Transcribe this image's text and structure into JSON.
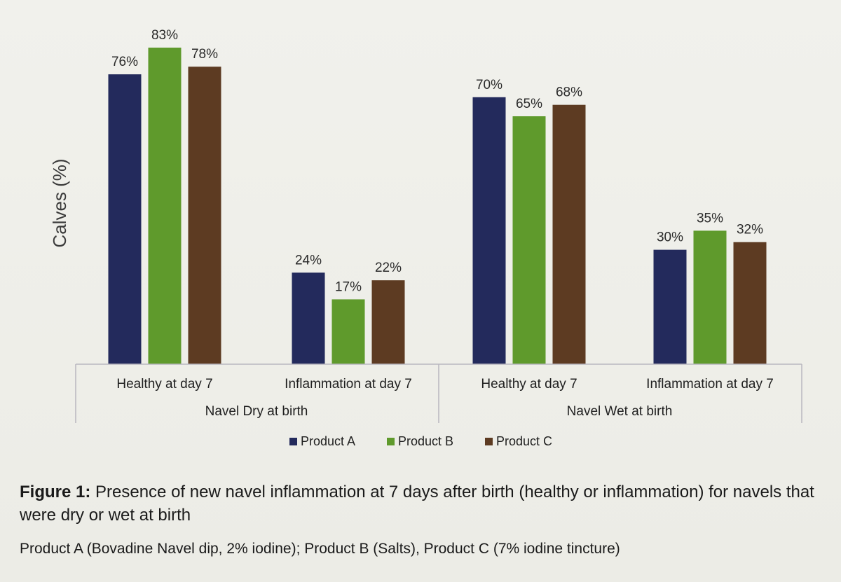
{
  "chart_data": {
    "type": "bar",
    "ylabel": "Calves (%)",
    "groups": [
      {
        "label": "Navel Dry at birth",
        "categories": [
          {
            "label": "Healthy at day 7",
            "values": [
              76,
              83,
              78
            ]
          },
          {
            "label": "Inflammation at day 7",
            "values": [
              24,
              17,
              22
            ]
          }
        ]
      },
      {
        "label": "Navel Wet at birth",
        "categories": [
          {
            "label": "Healthy at day 7",
            "values": [
              70,
              65,
              68
            ]
          },
          {
            "label": "Inflammation at day 7",
            "values": [
              30,
              35,
              32
            ]
          }
        ]
      }
    ],
    "series": [
      {
        "name": "Product A",
        "color": "#232a5c"
      },
      {
        "name": "Product B",
        "color": "#5f9a2c"
      },
      {
        "name": "Product C",
        "color": "#5d3b22"
      }
    ],
    "value_suffix": "%",
    "ylim": [
      0,
      90
    ],
    "grid": false,
    "legend": "bottom-center"
  },
  "caption": {
    "figure_label": "Figure 1:",
    "figure_text": " Presence of new navel inflammation at 7 days after birth (healthy or inflammation) for navels that were dry or wet at birth",
    "products_note": "Product A (Bovadine Navel dip, 2% iodine); Product B (Salts), Product C (7% iodine tincture)"
  }
}
